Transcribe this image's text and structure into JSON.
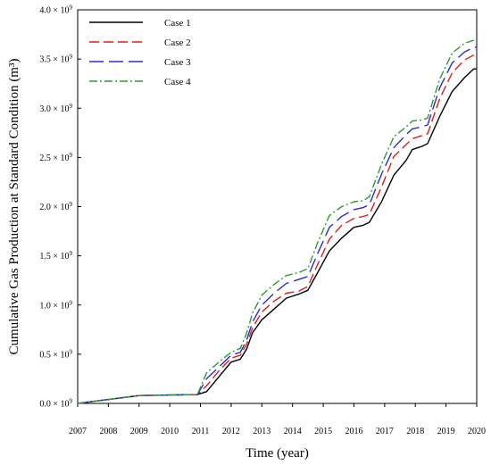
{
  "chart_data": {
    "type": "line",
    "title": "",
    "xlabel": "Time (year)",
    "ylabel": "Cumulative Gas Production at Standard Condition (m³)",
    "xlim": [
      2007,
      2020
    ],
    "ylim": [
      0,
      4000000000
    ],
    "x_ticks": [
      "2007",
      "2008",
      "2009",
      "2010",
      "2011",
      "2012",
      "2013",
      "2014",
      "2015",
      "2016",
      "2017",
      "2018",
      "2019",
      "2020"
    ],
    "y_ticks": [
      {
        "value": 0,
        "mantissa": "0.0",
        "base": "10",
        "exp": "9"
      },
      {
        "value": 500000000,
        "mantissa": "0.5",
        "base": "10",
        "exp": "9"
      },
      {
        "value": 1000000000,
        "mantissa": "1.0",
        "base": "10",
        "exp": "9"
      },
      {
        "value": 1500000000,
        "mantissa": "1.5",
        "base": "10",
        "exp": "9"
      },
      {
        "value": 2000000000,
        "mantissa": "2.0",
        "base": "10",
        "exp": "9"
      },
      {
        "value": 2500000000,
        "mantissa": "2.5",
        "base": "10",
        "exp": "9"
      },
      {
        "value": 3000000000,
        "mantissa": "3.0",
        "base": "10",
        "exp": "9"
      },
      {
        "value": 3500000000,
        "mantissa": "3.5",
        "base": "10",
        "exp": "9"
      },
      {
        "value": 4000000000,
        "mantissa": "4.0",
        "base": "10",
        "exp": "9"
      }
    ],
    "grid": false,
    "legend_position": "top-left",
    "series": [
      {
        "name": "Case 1",
        "color": "#000000",
        "dash": "solid",
        "x": [
          2007,
          2008,
          2009,
          2010,
          2010.9,
          2011.2,
          2011.6,
          2012.0,
          2012.3,
          2012.5,
          2012.7,
          2013.0,
          2013.4,
          2013.8,
          2014.2,
          2014.5,
          2014.8,
          2015.2,
          2015.6,
          2016.0,
          2016.3,
          2016.5,
          2016.9,
          2017.3,
          2017.7,
          2017.9,
          2018.2,
          2018.4,
          2018.8,
          2019.2,
          2019.6,
          2019.9,
          2020.0
        ],
        "y": [
          0,
          40000000.0,
          80000000.0,
          85000000.0,
          90000000.0,
          120000000.0,
          270000000.0,
          420000000.0,
          450000000.0,
          550000000.0,
          720000000.0,
          850000000.0,
          960000000.0,
          1070000000.0,
          1110000000.0,
          1150000000.0,
          1320000000.0,
          1550000000.0,
          1680000000.0,
          1790000000.0,
          1810000000.0,
          1840000000.0,
          2050000000.0,
          2320000000.0,
          2470000000.0,
          2580000000.0,
          2610000000.0,
          2640000000.0,
          2920000000.0,
          3170000000.0,
          3310000000.0,
          3400000000.0,
          3400000000.0
        ]
      },
      {
        "name": "Case 2",
        "color": "#e41a1c",
        "dash": "11,5",
        "x": [
          2007,
          2008,
          2009,
          2010,
          2010.9,
          2011.2,
          2011.6,
          2012.0,
          2012.3,
          2012.5,
          2012.7,
          2013.0,
          2013.4,
          2013.8,
          2014.2,
          2014.5,
          2014.8,
          2015.2,
          2015.6,
          2016.0,
          2016.3,
          2016.5,
          2016.9,
          2017.3,
          2017.7,
          2017.9,
          2018.2,
          2018.4,
          2018.8,
          2019.2,
          2019.6,
          2019.9,
          2020.0
        ],
        "y": [
          0,
          40000000.0,
          80000000.0,
          85000000.0,
          90000000.0,
          180000000.0,
          330000000.0,
          460000000.0,
          490000000.0,
          600000000.0,
          770000000.0,
          930000000.0,
          1040000000.0,
          1120000000.0,
          1140000000.0,
          1190000000.0,
          1400000000.0,
          1670000000.0,
          1810000000.0,
          1880000000.0,
          1900000000.0,
          1920000000.0,
          2200000000.0,
          2510000000.0,
          2630000000.0,
          2690000000.0,
          2720000000.0,
          2740000000.0,
          3100000000.0,
          3360000000.0,
          3490000000.0,
          3540000000.0,
          3540000000.0
        ]
      },
      {
        "name": "Case 3",
        "color": "#2b2bd8",
        "dash": "16,6",
        "x": [
          2007,
          2008,
          2009,
          2010,
          2010.9,
          2011.2,
          2011.6,
          2012.0,
          2012.3,
          2012.5,
          2012.7,
          2013.0,
          2013.4,
          2013.8,
          2014.2,
          2014.5,
          2014.8,
          2015.2,
          2015.6,
          2016.0,
          2016.3,
          2016.5,
          2016.9,
          2017.3,
          2017.7,
          2017.9,
          2018.2,
          2018.4,
          2018.8,
          2019.2,
          2019.6,
          2019.9,
          2020.0
        ],
        "y": [
          0,
          40000000.0,
          80000000.0,
          85000000.0,
          90000000.0,
          250000000.0,
          370000000.0,
          490000000.0,
          520000000.0,
          640000000.0,
          830000000.0,
          1000000000.0,
          1120000000.0,
          1220000000.0,
          1260000000.0,
          1290000000.0,
          1510000000.0,
          1790000000.0,
          1900000000.0,
          1970000000.0,
          1990000000.0,
          2020000000.0,
          2330000000.0,
          2600000000.0,
          2730000000.0,
          2790000000.0,
          2810000000.0,
          2830000000.0,
          3210000000.0,
          3460000000.0,
          3570000000.0,
          3620000000.0,
          3620000000.0
        ]
      },
      {
        "name": "Case 4",
        "color": "#2e9a35",
        "dash": "9,3,2,3",
        "x": [
          2007,
          2008,
          2009,
          2010,
          2010.9,
          2011.2,
          2011.6,
          2012.0,
          2012.3,
          2012.5,
          2012.7,
          2013.0,
          2013.4,
          2013.8,
          2014.2,
          2014.5,
          2014.8,
          2015.2,
          2015.6,
          2016.0,
          2016.3,
          2016.5,
          2016.9,
          2017.3,
          2017.7,
          2017.9,
          2018.2,
          2018.4,
          2018.8,
          2019.2,
          2019.6,
          2019.9,
          2020.0
        ],
        "y": [
          0,
          40000000.0,
          80000000.0,
          85000000.0,
          90000000.0,
          310000000.0,
          420000000.0,
          520000000.0,
          560000000.0,
          710000000.0,
          920000000.0,
          1100000000.0,
          1210000000.0,
          1300000000.0,
          1330000000.0,
          1370000000.0,
          1620000000.0,
          1910000000.0,
          2000000000.0,
          2050000000.0,
          2060000000.0,
          2100000000.0,
          2430000000.0,
          2710000000.0,
          2810000000.0,
          2870000000.0,
          2880000000.0,
          2900000000.0,
          3300000000.0,
          3560000000.0,
          3660000000.0,
          3690000000.0,
          3690000000.0
        ]
      }
    ]
  }
}
